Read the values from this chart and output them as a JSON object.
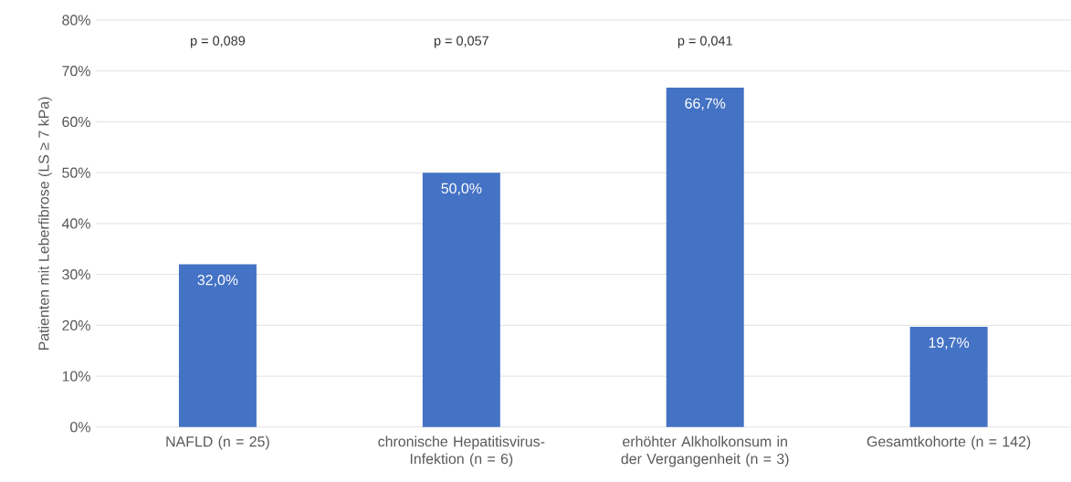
{
  "chart_data": {
    "type": "bar",
    "ylabel": "Patienten mit Leberfibrose (LS ≥ 7 kPa)",
    "categories": [
      "NAFLD (n = 25)",
      "chronische Hepatitisvirus-Infektion (n = 6)",
      "erhöhter Alkholkonsum in der Vergangenheit (n = 3)",
      "Gesamtkohorte (n = 142)"
    ],
    "values": [
      32.0,
      50.0,
      66.7,
      19.7
    ],
    "value_labels": [
      "32,0%",
      "50,0%",
      "66,7%",
      "19,7%"
    ],
    "color": "#4472c4",
    "ylim": [
      0,
      80
    ],
    "yticks": [
      {
        "value": 0,
        "label": "0%"
      },
      {
        "value": 10,
        "label": "10%"
      },
      {
        "value": 20,
        "label": "20%"
      },
      {
        "value": 30,
        "label": "30%"
      },
      {
        "value": 40,
        "label": "40%"
      },
      {
        "value": 50,
        "label": "50%"
      },
      {
        "value": 60,
        "label": "60%"
      },
      {
        "value": 70,
        "label": "70%"
      },
      {
        "value": 80,
        "label": "80%"
      }
    ],
    "grid": "y",
    "annotations": [
      "p = 0,089",
      "p = 0,057",
      "p = 0,041"
    ]
  }
}
